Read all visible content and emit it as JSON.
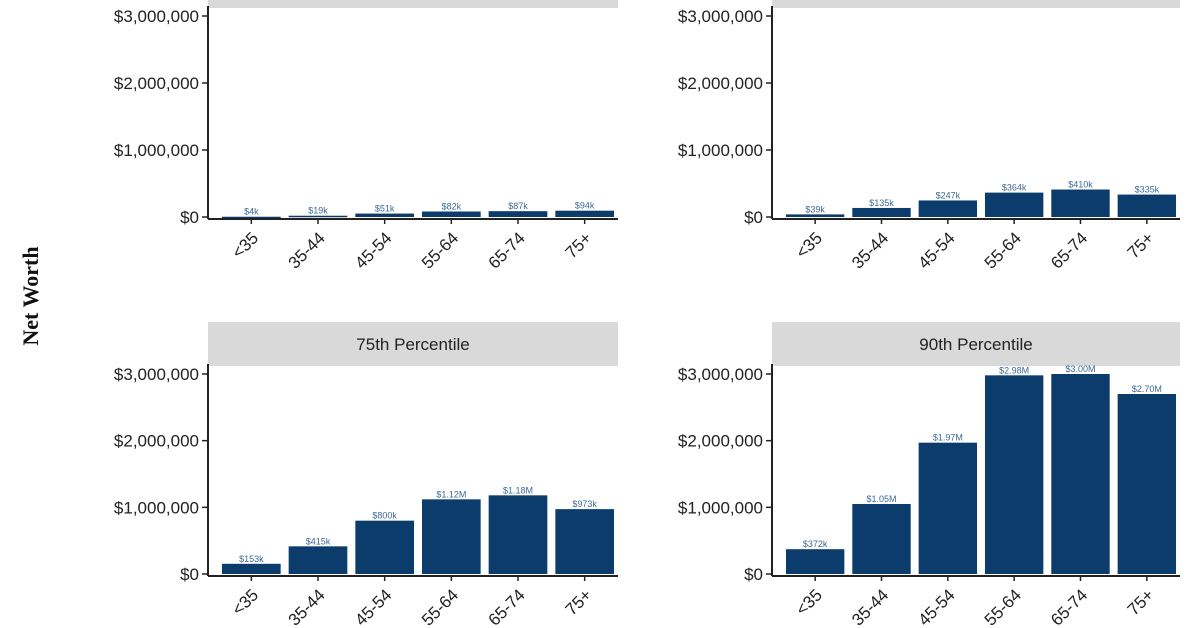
{
  "ylabel": "Net Worth",
  "colors": {
    "bar": "#0b3c6b",
    "strip": "#d9d9d9",
    "axis": "#222222",
    "label": "#3d6a95"
  },
  "chart_data": [
    {
      "type": "bar",
      "title": "",
      "categories": [
        "<35",
        "35-44",
        "45-54",
        "55-64",
        "65-74",
        "75+"
      ],
      "values": [
        4000,
        19000,
        51000,
        82000,
        87000,
        94000
      ],
      "labels": [
        "$4k",
        "$19k",
        "$51k",
        "$82k",
        "$87k",
        "$94k"
      ],
      "yticks": [
        "$3,000,000",
        "$2,000,000",
        "$1,000,000",
        "$0"
      ],
      "ytick_values": [
        3000000,
        2000000,
        1000000,
        0
      ],
      "ylim": [
        0,
        3000000
      ]
    },
    {
      "type": "bar",
      "title": "",
      "categories": [
        "<35",
        "35-44",
        "45-54",
        "55-64",
        "65-74",
        "75+"
      ],
      "values": [
        39000,
        135000,
        247000,
        364000,
        410000,
        335000
      ],
      "labels": [
        "$39k",
        "$135k",
        "$247k",
        "$364k",
        "$410k",
        "$335k"
      ],
      "yticks": [
        "$3,000,000",
        "$2,000,000",
        "$1,000,000",
        "$0"
      ],
      "ytick_values": [
        3000000,
        2000000,
        1000000,
        0
      ],
      "ylim": [
        0,
        3000000
      ]
    },
    {
      "type": "bar",
      "title": "75th Percentile",
      "categories": [
        "<35",
        "35-44",
        "45-54",
        "55-64",
        "65-74",
        "75+"
      ],
      "values": [
        153000,
        415000,
        800000,
        1120000,
        1180000,
        973000
      ],
      "labels": [
        "$153k",
        "$415k",
        "$800k",
        "$1.12M",
        "$1.18M",
        "$973k"
      ],
      "yticks": [
        "$3,000,000",
        "$2,000,000",
        "$1,000,000",
        "$0"
      ],
      "ytick_values": [
        3000000,
        2000000,
        1000000,
        0
      ],
      "ylim": [
        0,
        3000000
      ]
    },
    {
      "type": "bar",
      "title": "90th Percentile",
      "categories": [
        "<35",
        "35-44",
        "45-54",
        "55-64",
        "65-74",
        "75+"
      ],
      "values": [
        372000,
        1050000,
        1970000,
        2980000,
        3000000,
        2700000
      ],
      "labels": [
        "$372k",
        "$1.05M",
        "$1.97M",
        "$2.98M",
        "$3.00M",
        "$2.70M"
      ],
      "yticks": [
        "$3,000,000",
        "$2,000,000",
        "$1,000,000",
        "$0"
      ],
      "ytick_values": [
        3000000,
        2000000,
        1000000,
        0
      ],
      "ylim": [
        0,
        3000000
      ]
    }
  ]
}
